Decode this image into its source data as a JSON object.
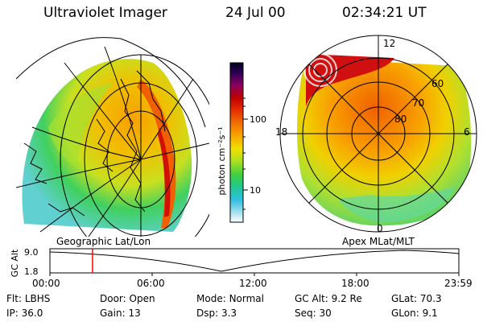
{
  "header": {
    "instrument": "Ultraviolet Imager",
    "date": "24 Jul 00",
    "time": "02:34:21 UT"
  },
  "left_panel": {
    "label": "Geographic Lat/Lon"
  },
  "right_panel": {
    "label": "Apex MLat/MLT",
    "clock_labels": {
      "top": "12",
      "left": "18",
      "right": "6",
      "bottom": "0"
    },
    "lat_labels": [
      "60",
      "70",
      "80"
    ]
  },
  "colorbar": {
    "unit_label": "photon cm⁻²s⁻¹",
    "tick_labels": [
      "100",
      "10"
    ],
    "colors": [
      "#000020",
      "#2a0050",
      "#8a0060",
      "#c00000",
      "#e83000",
      "#f07000",
      "#f8a800",
      "#f0e000",
      "#a8e020",
      "#40d040",
      "#20c890",
      "#30c0e0",
      "#a8e0f0",
      "#ffffff"
    ]
  },
  "timeline": {
    "axis_title": "GC Alt",
    "y_labels": [
      "9.0",
      "1.8"
    ],
    "x_labels": [
      "00:00",
      "06:00",
      "12:00",
      "18:00",
      "23:59"
    ],
    "marker_color": "#ff0000"
  },
  "info": {
    "row1": [
      {
        "label": "Flt:",
        "value": "LBHS"
      },
      {
        "label": "Door:",
        "value": "Open"
      },
      {
        "label": "Mode:",
        "value": "Normal"
      },
      {
        "label": "GC Alt:",
        "value": "9.2 Re"
      },
      {
        "label": "GLat:",
        "value": "70.3"
      }
    ],
    "row2": [
      {
        "label": "IP:",
        "value": "36.0"
      },
      {
        "label": "Gain:",
        "value": "13"
      },
      {
        "label": "Dsp:",
        "value": "3.3"
      },
      {
        "label": "Seq:",
        "value": "30"
      },
      {
        "label": "GLon:",
        "value": "9.1"
      }
    ]
  }
}
